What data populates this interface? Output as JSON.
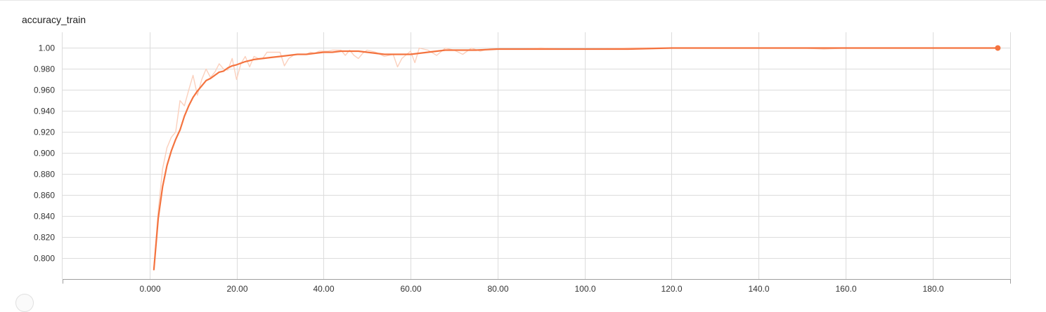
{
  "card": {
    "title": "accuracy_train"
  },
  "colors": {
    "series_main": "#f4733f",
    "series_raw": "#fbd0bd",
    "grid": "#dcdcdc",
    "axis": "#9e9e9e",
    "marker": "#f4733f"
  },
  "chart_data": {
    "type": "line",
    "title": "accuracy_train",
    "xlabel": "",
    "ylabel": "",
    "xlim": [
      -20,
      198
    ],
    "ylim": [
      0.78,
      1.015
    ],
    "grid": true,
    "x_ticks": [
      {
        "value": 0,
        "label": "0.000"
      },
      {
        "value": 20,
        "label": "20.00"
      },
      {
        "value": 40,
        "label": "40.00"
      },
      {
        "value": 60,
        "label": "60.00"
      },
      {
        "value": 80,
        "label": "80.00"
      },
      {
        "value": 100,
        "label": "100.0"
      },
      {
        "value": 120,
        "label": "120.0"
      },
      {
        "value": 140,
        "label": "140.0"
      },
      {
        "value": 160,
        "label": "160.0"
      },
      {
        "value": 180,
        "label": "180.0"
      }
    ],
    "y_ticks": [
      {
        "value": 0.8,
        "label": "0.800"
      },
      {
        "value": 0.82,
        "label": "0.820"
      },
      {
        "value": 0.84,
        "label": "0.840"
      },
      {
        "value": 0.86,
        "label": "0.860"
      },
      {
        "value": 0.88,
        "label": "0.880"
      },
      {
        "value": 0.9,
        "label": "0.900"
      },
      {
        "value": 0.92,
        "label": "0.920"
      },
      {
        "value": 0.94,
        "label": "0.940"
      },
      {
        "value": 0.96,
        "label": "0.960"
      },
      {
        "value": 0.98,
        "label": "0.980"
      },
      {
        "value": 1.0,
        "label": "1.00"
      }
    ],
    "series": [
      {
        "role": "raw",
        "x": [
          1,
          2,
          3,
          4,
          5,
          6,
          7,
          8,
          9,
          10,
          11,
          12,
          13,
          14,
          15,
          16,
          17,
          18,
          19,
          20,
          21,
          22,
          23,
          24,
          25,
          26,
          27,
          28,
          29,
          30,
          31,
          32,
          33,
          34,
          35,
          36,
          37,
          38,
          39,
          40,
          41,
          42,
          43,
          44,
          45,
          46,
          47,
          48,
          49,
          50,
          52,
          54,
          56,
          57,
          58,
          60,
          61,
          62,
          64,
          66,
          68,
          70,
          72,
          74,
          76,
          78,
          80,
          85,
          90,
          95,
          100,
          110,
          120,
          130,
          140,
          150,
          155,
          160,
          170,
          180,
          190,
          195
        ],
        "y": [
          0.79,
          0.845,
          0.885,
          0.905,
          0.915,
          0.92,
          0.95,
          0.945,
          0.96,
          0.974,
          0.955,
          0.97,
          0.98,
          0.972,
          0.977,
          0.985,
          0.98,
          0.979,
          0.99,
          0.97,
          0.985,
          0.992,
          0.982,
          0.992,
          0.99,
          0.99,
          0.996,
          0.996,
          0.996,
          0.996,
          0.983,
          0.99,
          0.993,
          0.994,
          0.994,
          0.994,
          0.996,
          0.995,
          0.997,
          0.997,
          0.997,
          0.998,
          0.998,
          0.998,
          0.993,
          0.998,
          0.993,
          0.99,
          0.995,
          0.998,
          0.996,
          0.992,
          0.994,
          0.982,
          0.99,
          0.997,
          0.986,
          1.0,
          0.998,
          0.993,
          1.0,
          0.998,
          0.994,
          1.0,
          0.997,
          0.999,
          0.999,
          0.999,
          1.0,
          0.999,
          0.999,
          1.0,
          1.0,
          1.0,
          1.0,
          1.0,
          0.999,
          1.0,
          1.0,
          1.0,
          1.0,
          1.0
        ]
      },
      {
        "role": "smoothed",
        "x": [
          1,
          2,
          3,
          4,
          5,
          6,
          7,
          8,
          9,
          10,
          11,
          12,
          13,
          14,
          15,
          16,
          17,
          18,
          19,
          20,
          22,
          24,
          26,
          28,
          30,
          32,
          34,
          36,
          38,
          40,
          42,
          44,
          46,
          48,
          50,
          52,
          54,
          56,
          58,
          60,
          62,
          64,
          66,
          68,
          70,
          75,
          80,
          90,
          100,
          110,
          120,
          130,
          140,
          150,
          160,
          170,
          180,
          190,
          195
        ],
        "y": [
          0.789,
          0.838,
          0.868,
          0.888,
          0.902,
          0.913,
          0.922,
          0.935,
          0.945,
          0.953,
          0.959,
          0.964,
          0.969,
          0.971,
          0.974,
          0.977,
          0.978,
          0.981,
          0.983,
          0.984,
          0.987,
          0.989,
          0.99,
          0.991,
          0.992,
          0.993,
          0.994,
          0.994,
          0.995,
          0.996,
          0.996,
          0.997,
          0.997,
          0.997,
          0.996,
          0.995,
          0.994,
          0.994,
          0.994,
          0.994,
          0.995,
          0.996,
          0.997,
          0.998,
          0.998,
          0.998,
          0.999,
          0.999,
          0.999,
          0.999,
          1.0,
          1.0,
          1.0,
          1.0,
          1.0,
          1.0,
          1.0,
          1.0,
          1.0
        ]
      }
    ],
    "last_point": {
      "x": 195,
      "y": 1.0
    }
  }
}
